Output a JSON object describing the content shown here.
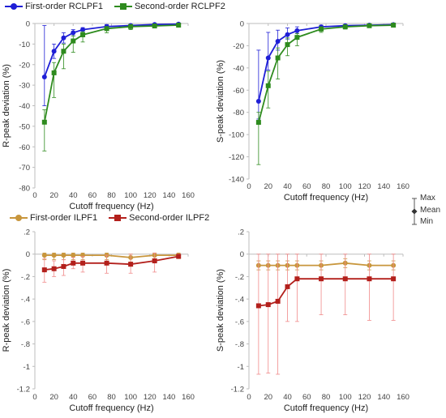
{
  "colors": {
    "first_order_rc": "#1f1fd6",
    "second_order_rc": "#2e8b1e",
    "first_order_il": "#c8963c",
    "second_order_il": "#b3201c",
    "error_bar_il": "#f08a8a",
    "axis": "#bdbdbd"
  },
  "key": {
    "max": "Max",
    "mean": "Mean",
    "min": "Min"
  },
  "chart_data": [
    {
      "type": "line",
      "xlabel": "Cutoff frequency (Hz)",
      "ylabel": "R-peak deviation (%)",
      "xlim": [
        0,
        160
      ],
      "ylim": [
        -80,
        0
      ],
      "xticks": [
        0,
        20,
        40,
        60,
        80,
        100,
        120,
        140,
        160
      ],
      "yticks": [
        0,
        -10,
        -20,
        -30,
        -40,
        -50,
        -60,
        -70,
        -80
      ],
      "x": [
        10,
        20,
        30,
        40,
        50,
        75,
        100,
        125,
        150
      ],
      "legend_position": "top",
      "series": [
        {
          "name": "First-order RCLPF1",
          "marker": "circle",
          "values": [
            -26,
            -13.5,
            -7,
            -4.5,
            -3,
            -1.5,
            -1,
            -0.5,
            -0.3
          ],
          "err_low": [
            -40,
            -17,
            -9.5,
            -6,
            -4,
            -2.5,
            -1.5,
            -1,
            -0.8
          ],
          "err_high": [
            -1,
            -10,
            -4.5,
            -3,
            -2,
            -0.5,
            -0.5,
            -0.2,
            -0.1
          ]
        },
        {
          "name": "Second-order RCLPF2",
          "marker": "square",
          "values": [
            -48,
            -24,
            -13.5,
            -8.5,
            -5.5,
            -2.5,
            -1.5,
            -1.2,
            -0.8
          ],
          "err_low": [
            -62,
            -36,
            -22,
            -14,
            -9,
            -4.5,
            -3,
            -2,
            -1.5
          ],
          "err_high": [
            -42,
            -19,
            -10,
            -6,
            -4,
            -1.5,
            -1,
            -0.6,
            -0.4
          ]
        }
      ]
    },
    {
      "type": "line",
      "xlabel": "Cutoff frequency (Hz)",
      "ylabel": "S-peak deviation (%)",
      "xlim": [
        0,
        160
      ],
      "ylim": [
        -140,
        0
      ],
      "xticks": [
        0,
        20,
        40,
        60,
        80,
        100,
        120,
        140,
        160
      ],
      "yticks": [
        0,
        -20,
        -40,
        -60,
        -80,
        -100,
        -120,
        -140
      ],
      "x": [
        10,
        20,
        30,
        40,
        50,
        75,
        100,
        125,
        150
      ],
      "series": [
        {
          "name": "First-order RCLPF1",
          "marker": "circle",
          "values": [
            -70,
            -31,
            -16,
            -10,
            -6.5,
            -3,
            -2,
            -1.5,
            -1
          ],
          "err_low": [
            -86,
            -42,
            -24,
            -14,
            -9,
            -5,
            -3,
            -2.5,
            -2
          ],
          "err_high": [
            -24,
            -8,
            -6,
            -4,
            -3,
            -1.5,
            -1,
            -0.5,
            -0.3
          ]
        },
        {
          "name": "Second-order RCLPF2",
          "marker": "square",
          "values": [
            -89,
            -56,
            -31,
            -19,
            -12.5,
            -5,
            -3,
            -2,
            -1.5
          ],
          "err_low": [
            -127,
            -76,
            -50,
            -29,
            -20,
            -8,
            -5,
            -3.5,
            -2.5
          ],
          "err_high": [
            -80,
            -43,
            -22,
            -13,
            -9,
            -3,
            -2,
            -1.2,
            -0.8
          ]
        }
      ]
    },
    {
      "type": "line",
      "xlabel": "Cutoff frequency (Hz)",
      "ylabel": "R-peak deviation (%)",
      "xlim": [
        0,
        160
      ],
      "ylim": [
        -1.2,
        0.2
      ],
      "xticks": [
        0,
        20,
        40,
        60,
        80,
        100,
        120,
        140,
        160
      ],
      "yticks": [
        0.2,
        0,
        -0.2,
        -0.4,
        -0.6,
        -0.8,
        -1,
        -1.2
      ],
      "x": [
        10,
        20,
        30,
        40,
        50,
        75,
        100,
        125,
        150
      ],
      "legend_position": "top",
      "series": [
        {
          "name": "First-order ILPF1",
          "marker": "circle",
          "values": [
            -0.01,
            -0.01,
            -0.01,
            -0.01,
            -0.01,
            -0.01,
            -0.03,
            -0.01,
            -0.01
          ],
          "err_low": [
            -0.05,
            -0.05,
            -0.05,
            -0.05,
            -0.05,
            -0.05,
            -0.07,
            -0.04,
            -0.04
          ],
          "err_high": [
            0.01,
            0.01,
            0.01,
            0.01,
            0.01,
            0.01,
            0.0,
            0.01,
            0.01
          ]
        },
        {
          "name": "Second-order ILPF2",
          "marker": "square",
          "values": [
            -0.14,
            -0.13,
            -0.11,
            -0.08,
            -0.08,
            -0.08,
            -0.09,
            -0.06,
            -0.02
          ],
          "err_low": [
            -0.25,
            -0.2,
            -0.19,
            -0.13,
            -0.16,
            -0.17,
            -0.17,
            -0.16,
            -0.03
          ],
          "err_high": [
            -0.04,
            -0.06,
            -0.05,
            -0.03,
            -0.02,
            -0.01,
            0.0,
            0.01,
            0.0
          ]
        }
      ]
    },
    {
      "type": "line",
      "xlabel": "Cutoff frequency (Hz)",
      "ylabel": "S-peak deviation (%)",
      "xlim": [
        0,
        160
      ],
      "ylim": [
        -1.2,
        0.2
      ],
      "xticks": [
        0,
        20,
        40,
        60,
        80,
        100,
        120,
        140,
        160
      ],
      "yticks": [
        0.2,
        0,
        -0.2,
        -0.4,
        -0.6,
        -0.8,
        -1,
        -1.2
      ],
      "x": [
        10,
        20,
        30,
        40,
        50,
        75,
        100,
        125,
        150
      ],
      "series": [
        {
          "name": "First-order ILPF1",
          "marker": "circle",
          "values": [
            -0.1,
            -0.1,
            -0.1,
            -0.1,
            -0.1,
            -0.1,
            -0.08,
            -0.1,
            -0.1
          ],
          "err_low": [
            -0.14,
            -0.14,
            -0.14,
            -0.14,
            -0.14,
            -0.14,
            -0.12,
            -0.14,
            -0.14
          ],
          "err_high": [
            -0.06,
            -0.06,
            -0.06,
            -0.06,
            -0.06,
            -0.06,
            -0.04,
            -0.06,
            -0.06
          ]
        },
        {
          "name": "Second-order ILPF2",
          "marker": "square",
          "values": [
            -0.46,
            -0.45,
            -0.42,
            -0.29,
            -0.22,
            -0.22,
            -0.22,
            -0.22,
            -0.22
          ],
          "err_low": [
            -1.07,
            -1.06,
            -1.07,
            -0.6,
            -0.6,
            -0.54,
            -0.54,
            -0.59,
            -0.59
          ],
          "err_high": [
            0.0,
            0.0,
            0.0,
            0.0,
            0.0,
            0.0,
            0.0,
            0.0,
            0.0
          ]
        }
      ]
    }
  ]
}
